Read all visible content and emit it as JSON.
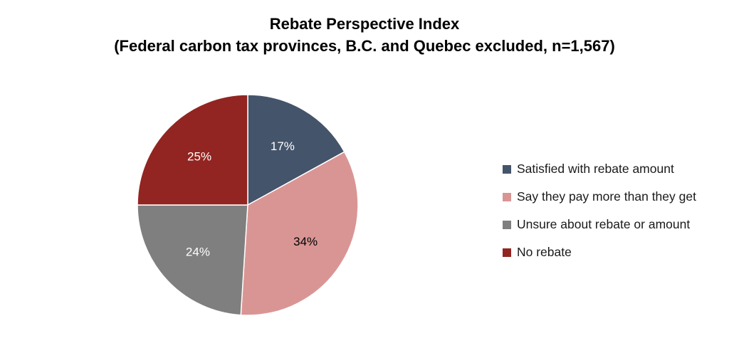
{
  "chart_data": {
    "type": "pie",
    "title": "Rebate Perspective Index",
    "subtitle": "(Federal carbon tax provinces, B.C. and Quebec excluded, n=1,567)",
    "slices": [
      {
        "name": "Satisfied with rebate amount",
        "value": 17,
        "label": "17%",
        "color": "#44546a",
        "label_color": "#ffffff"
      },
      {
        "name": "Say they pay more than they get",
        "value": 34,
        "label": "34%",
        "color": "#d99594",
        "label_color": "#000000"
      },
      {
        "name": "Unsure about rebate or amount",
        "value": 24,
        "label": "24%",
        "color": "#7f7f7f",
        "label_color": "#ffffff"
      },
      {
        "name": "No rebate",
        "value": 25,
        "label": "25%",
        "color": "#922521",
        "label_color": "#ffffff"
      }
    ],
    "start": "12 o'clock",
    "direction": "clockwise",
    "legend_position": "right",
    "slice_border_color": "#ffffff"
  }
}
